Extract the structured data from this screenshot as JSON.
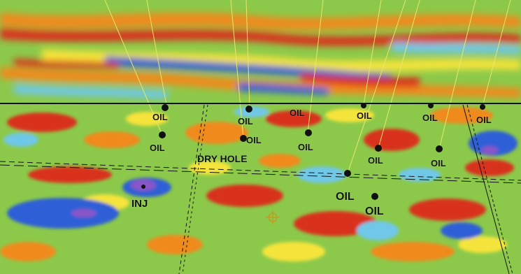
{
  "colors": {
    "red": "#d9311c",
    "orange": "#f08a1e",
    "yellow": "#f5e43a",
    "green": "#8cc94a",
    "light_blue": "#6fc8e8",
    "blue": "#2f5fd6",
    "purple": "#8a55c8",
    "well_line": "#e6e86a",
    "horizon_line": "#111111"
  },
  "labels": {
    "oil": "OIL",
    "dry_hole": "DRY HOLE",
    "inj": "INJ"
  }
}
